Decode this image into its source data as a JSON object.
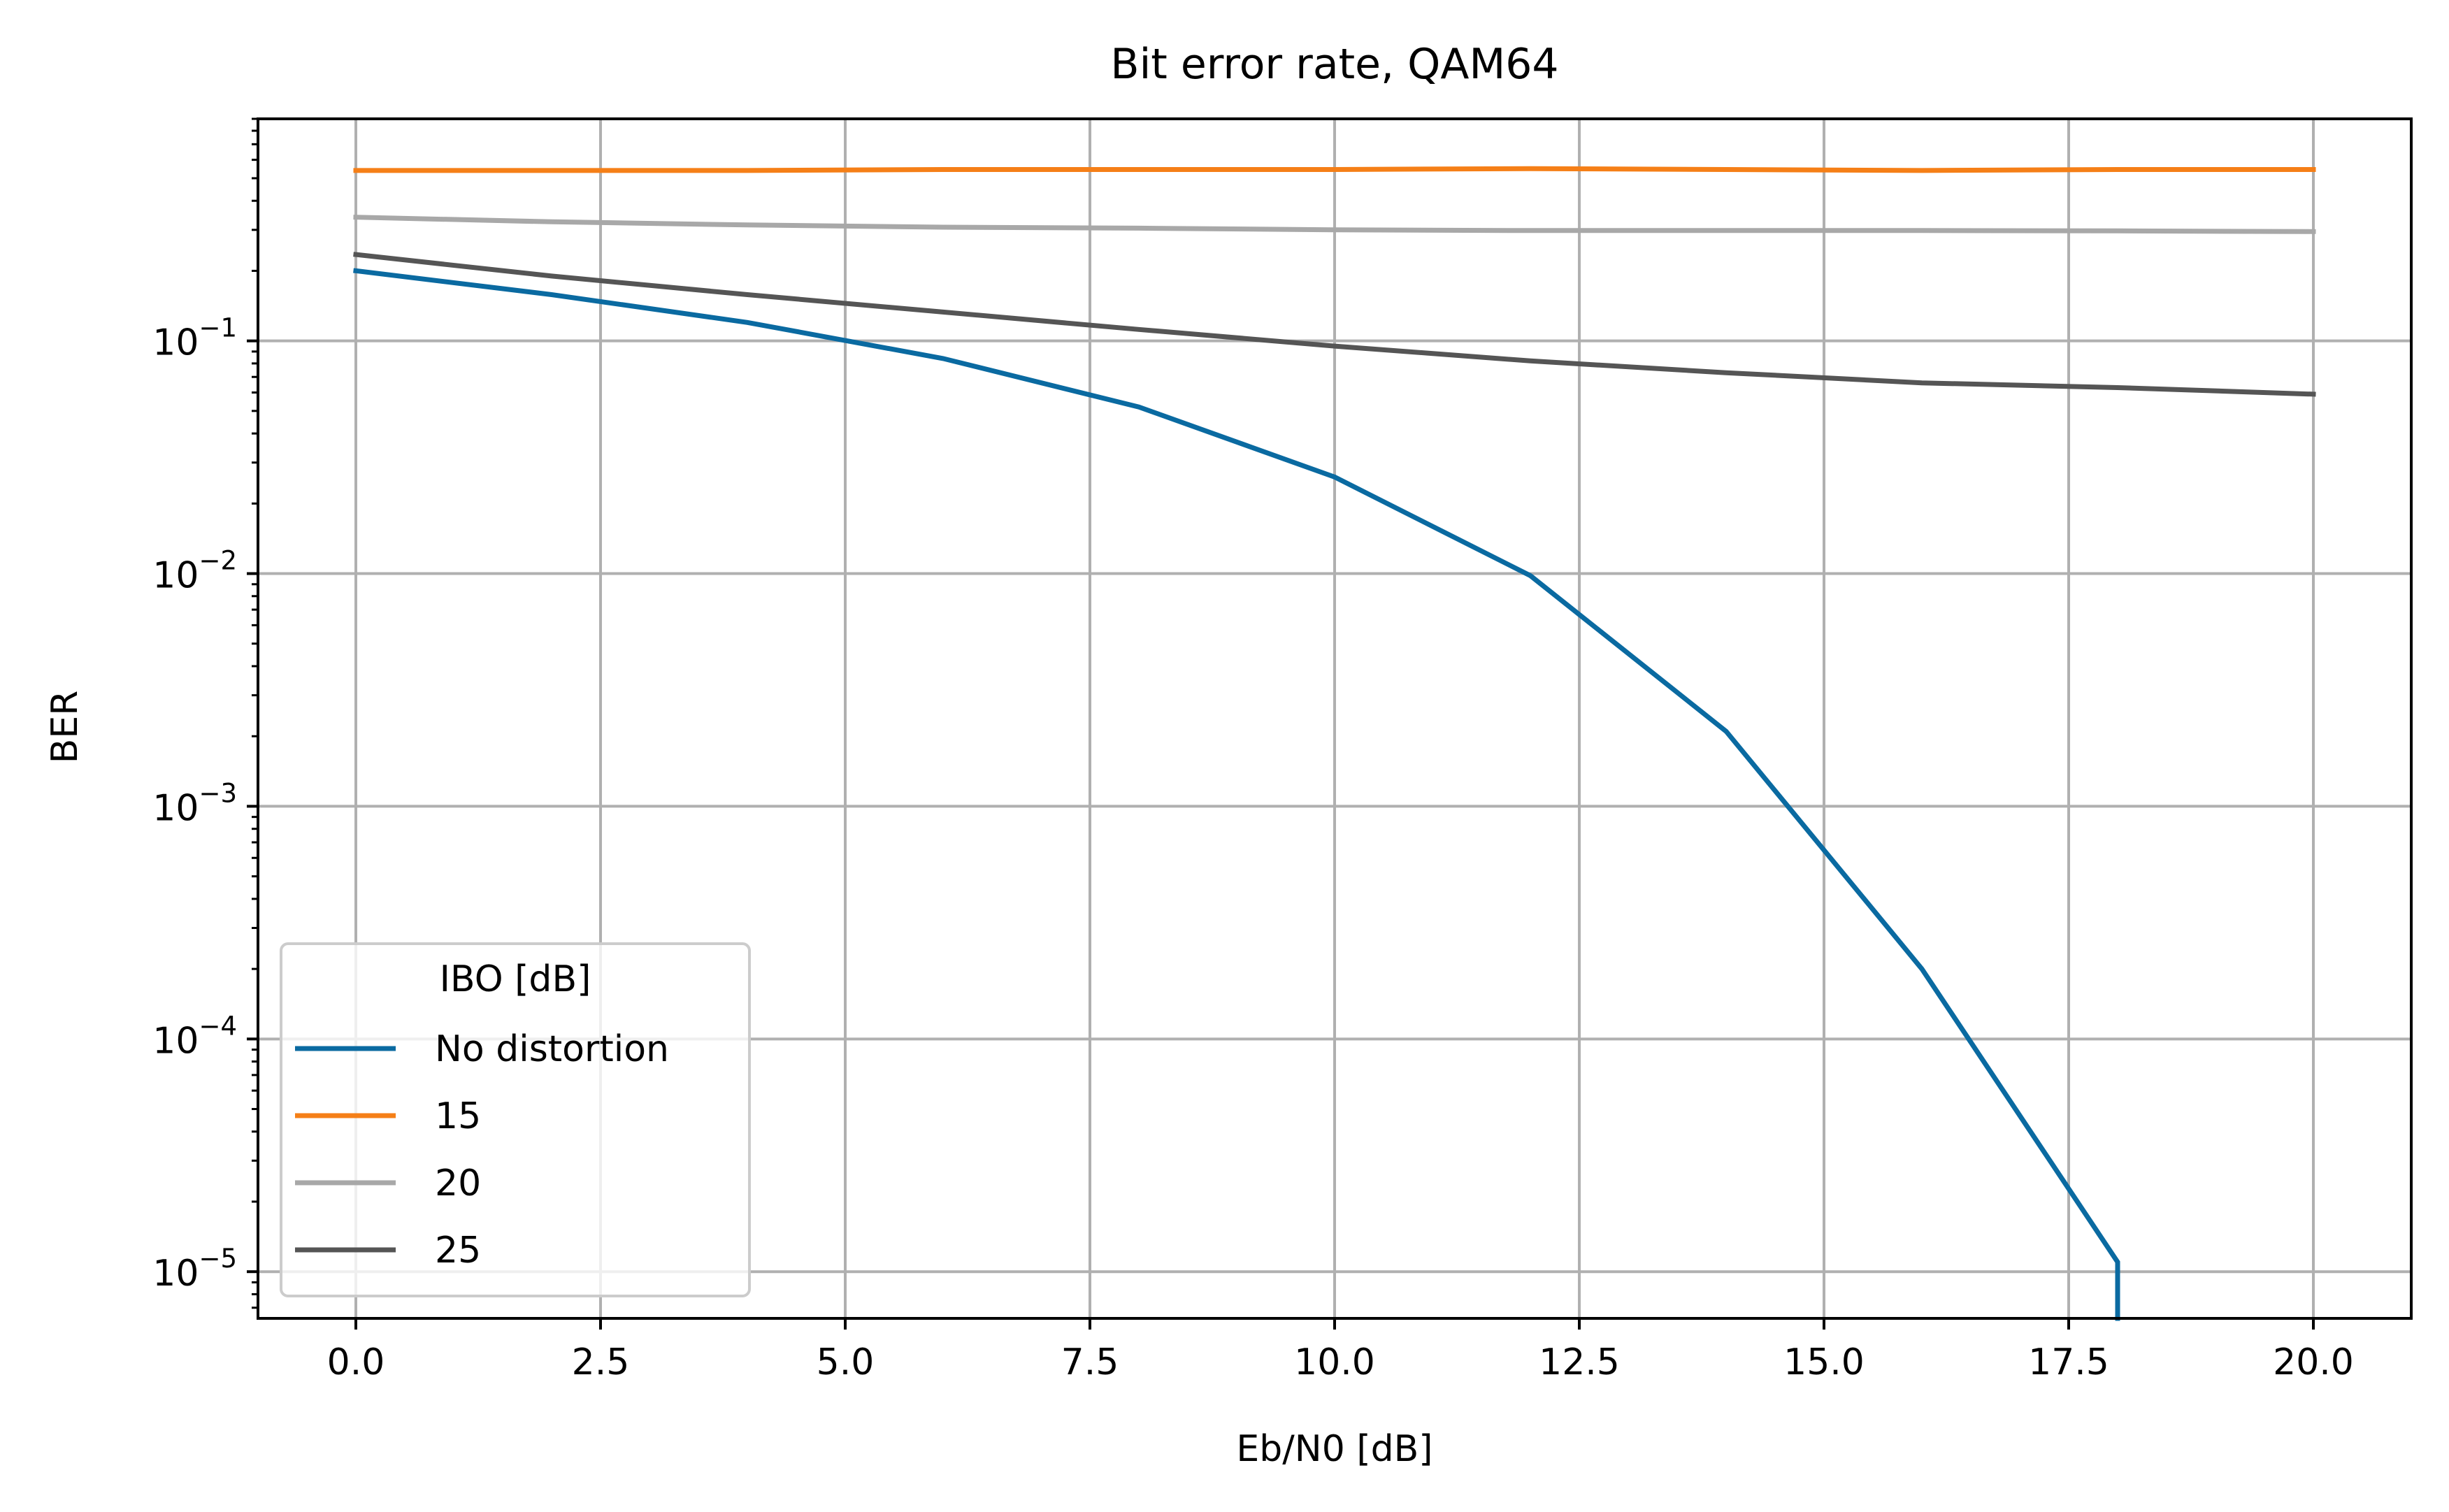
{
  "chart_data": {
    "type": "line",
    "title": "Bit error rate, QAM64",
    "xlabel": "Eb/N0 [dB]",
    "ylabel": "BER",
    "xlim": [
      -1.0,
      21.0
    ],
    "ylim": [
      6.3e-06,
      0.9
    ],
    "yscale": "log",
    "grid": true,
    "xticks": [
      0,
      2.5,
      5,
      7.5,
      10,
      12.5,
      15,
      17.5,
      20
    ],
    "xtick_labels": [
      "0.0",
      "2.5",
      "5.0",
      "7.5",
      "10.0",
      "12.5",
      "15.0",
      "17.5",
      "20.0"
    ],
    "yticks": [
      1e-05,
      0.0001,
      0.001,
      0.01,
      0.1
    ],
    "ytick_labels": [
      {
        "base": "10",
        "exp": "−5"
      },
      {
        "base": "10",
        "exp": "−4"
      },
      {
        "base": "10",
        "exp": "−3"
      },
      {
        "base": "10",
        "exp": "−2"
      },
      {
        "base": "10",
        "exp": "−1"
      }
    ],
    "legend": {
      "title": "IBO [dB]",
      "position": "lower-left"
    },
    "series": [
      {
        "name": "No distortion",
        "color": "#0a6aa1",
        "x": [
          0,
          2,
          4,
          6,
          8,
          10,
          12,
          14,
          16,
          18,
          18
        ],
        "y": [
          0.2,
          0.158,
          0.12,
          0.084,
          0.052,
          0.026,
          0.0098,
          0.0021,
          0.0002,
          1.1e-05,
          6.3e-06
        ]
      },
      {
        "name": "15",
        "color": "#f57f17",
        "x": [
          0,
          2,
          4,
          6,
          8,
          10,
          12,
          14,
          16,
          18,
          20
        ],
        "y": [
          0.54,
          0.54,
          0.54,
          0.545,
          0.545,
          0.545,
          0.55,
          0.545,
          0.54,
          0.545,
          0.545
        ]
      },
      {
        "name": "20",
        "color": "#a8a8a8",
        "x": [
          0,
          2,
          4,
          6,
          8,
          10,
          12,
          14,
          16,
          18,
          20
        ],
        "y": [
          0.34,
          0.325,
          0.315,
          0.308,
          0.305,
          0.3,
          0.298,
          0.298,
          0.298,
          0.297,
          0.295
        ]
      },
      {
        "name": "25",
        "color": "#555555",
        "x": [
          0,
          2,
          4,
          6,
          8,
          10,
          12,
          14,
          16,
          18,
          20
        ],
        "y": [
          0.235,
          0.19,
          0.158,
          0.133,
          0.112,
          0.095,
          0.082,
          0.073,
          0.066,
          0.063,
          0.059
        ]
      }
    ]
  }
}
